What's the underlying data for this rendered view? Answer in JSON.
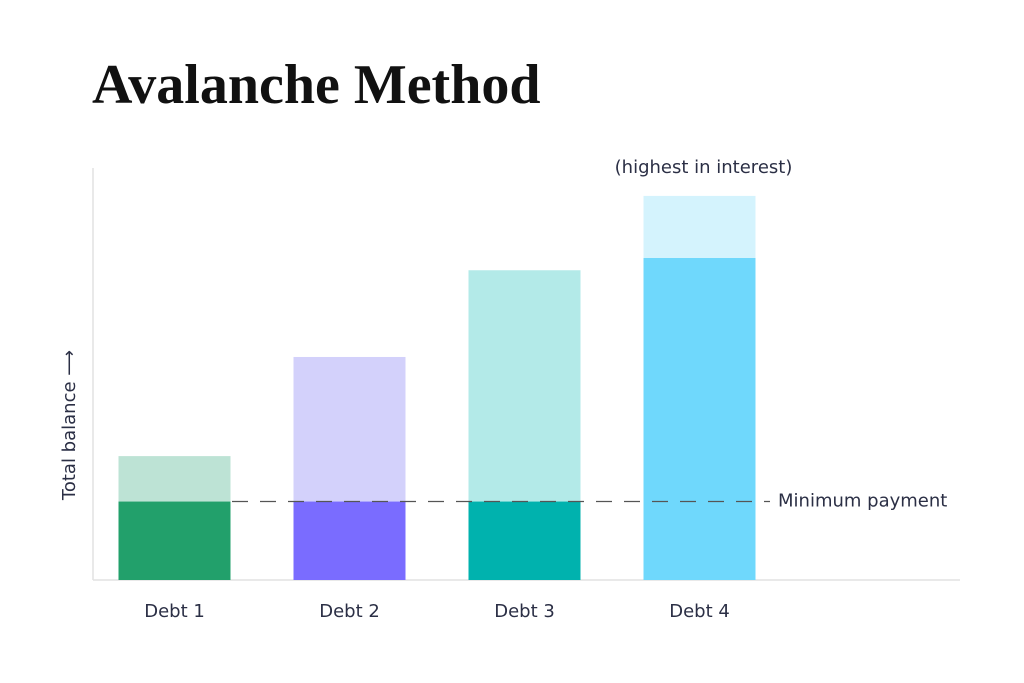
{
  "chart_data": {
    "type": "stacked-bar",
    "title": "Avalanche Method",
    "y_label": "Total balance ⟶",
    "annotation": "(highest in interest)",
    "annotation_category": 3,
    "categories": [
      "Debt 1",
      "Debt 2",
      "Debt 3",
      "Debt 4"
    ],
    "series": [
      {
        "values": [
          19,
          19,
          19,
          78
        ],
        "colors": [
          "#22a06b",
          "#7a6cff",
          "#00b2ae",
          "#6fd8fc"
        ]
      },
      {
        "values": [
          11,
          35,
          56,
          15
        ],
        "colors": [
          "#bde3d5",
          "#d3d1fb",
          "#b3eae8",
          "#d4f3fd"
        ]
      }
    ],
    "ylim": [
      0,
      100
    ],
    "reference_line": {
      "value": 19,
      "label": "Minimum payment"
    }
  }
}
